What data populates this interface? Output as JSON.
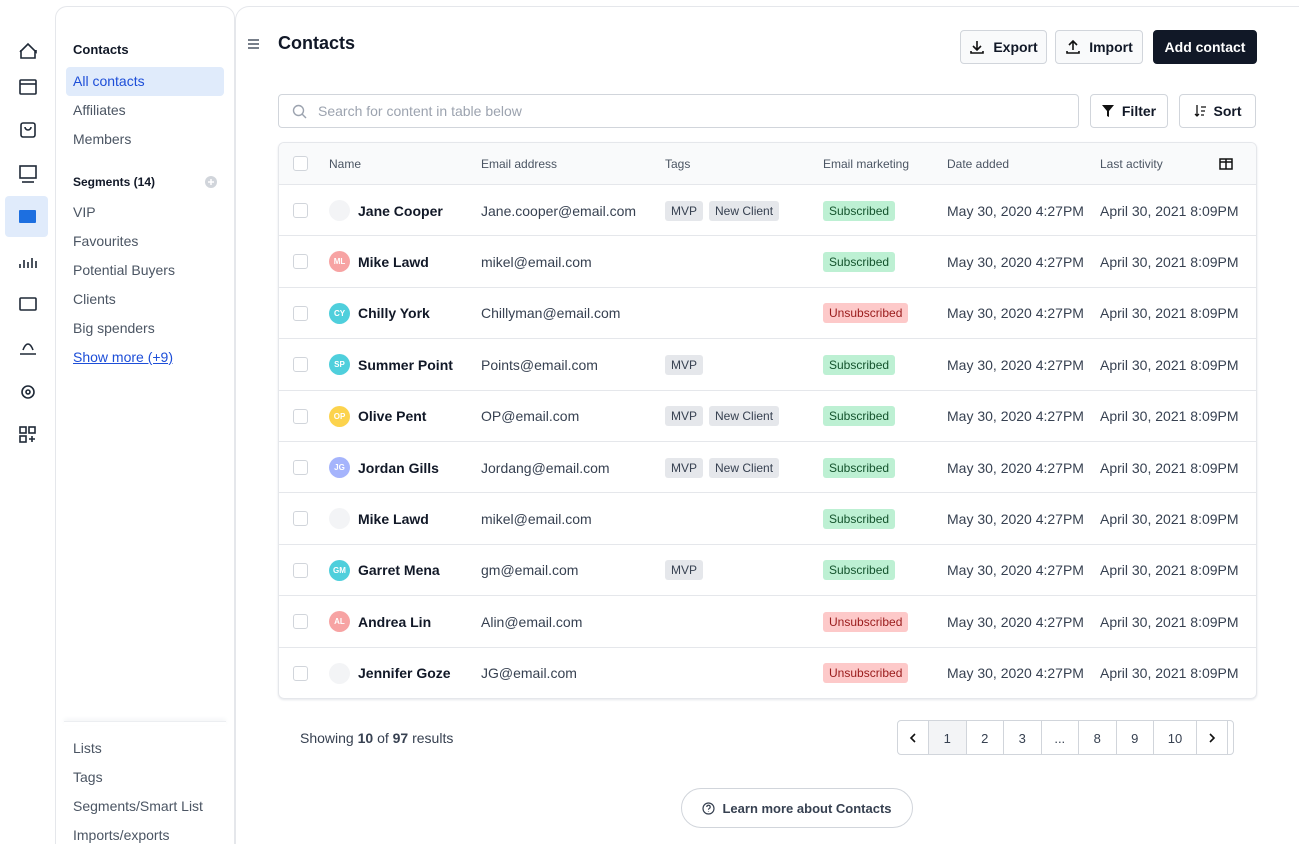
{
  "sidebar": {
    "title": "Contacts",
    "items": [
      "All contacts",
      "Affiliates",
      "Members"
    ],
    "active": "All contacts",
    "segments_title": "Segments (14)",
    "segments": [
      "VIP",
      "Favourites",
      "Potential Buyers",
      "Clients",
      "Big spenders"
    ],
    "show_more": "Show more (+9)",
    "footer_links": [
      "Lists",
      "Tags",
      "Segments/Smart List",
      "Imports/exports"
    ]
  },
  "header": {
    "title": "Contacts",
    "export": "Export",
    "import": "Import",
    "add": "Add contact"
  },
  "toolbar": {
    "search_placeholder": "Search for content in table below",
    "filter": "Filter",
    "sort": "Sort"
  },
  "table": {
    "columns": [
      "Name",
      "Email address",
      "Tags",
      "Email marketing",
      "Date added",
      "Last activity"
    ],
    "rows": [
      {
        "name": "Jane Cooper",
        "avatar_color": "#f3f4f6",
        "email": "Jane.cooper@email.com",
        "tags": [
          "MVP",
          "New Client"
        ],
        "status": "Subscribed",
        "date_added": "May 30, 2020 4:27PM",
        "last_activity": "April 30, 2021 8:09PM"
      },
      {
        "initials": "ML",
        "name": "Mike Lawd",
        "avatar_color": "#f7a3a3",
        "email": "mikel@email.com",
        "tags": [],
        "status": "Subscribed",
        "date_added": "May 30, 2020 4:27PM",
        "last_activity": "April 30, 2021 8:09PM"
      },
      {
        "initials": "CY",
        "name": "Chilly York",
        "avatar_color": "#4fcfdc",
        "email": "Chillyman@email.com",
        "tags": [],
        "status": "Unsubscribed",
        "date_added": "May 30, 2020 4:27PM",
        "last_activity": "April 30, 2021 8:09PM"
      },
      {
        "initials": "SP",
        "name": "Summer Point",
        "avatar_color": "#4fcfdc",
        "email": "Points@email.com",
        "tags": [
          "MVP"
        ],
        "status": "Subscribed",
        "date_added": "May 30, 2020 4:27PM",
        "last_activity": "April 30, 2021 8:09PM"
      },
      {
        "initials": "OP",
        "name": "Olive Pent",
        "avatar_color": "#fcd34d",
        "email": "OP@email.com",
        "tags": [
          "MVP",
          "New Client"
        ],
        "status": "Subscribed",
        "date_added": "May 30, 2020 4:27PM",
        "last_activity": "April 30, 2021 8:09PM"
      },
      {
        "initials": "JG",
        "name": "Jordan Gills",
        "avatar_color": "#a5b4fc",
        "email": "Jordang@email.com",
        "tags": [
          "MVP",
          "New Client"
        ],
        "status": "Subscribed",
        "date_added": "May 30, 2020 4:27PM",
        "last_activity": "April 30, 2021 8:09PM"
      },
      {
        "name": "Mike Lawd",
        "avatar_color": "#f3f4f6",
        "email": "mikel@email.com",
        "tags": [],
        "status": "Subscribed",
        "date_added": "May 30, 2020 4:27PM",
        "last_activity": "April 30, 2021 8:09PM"
      },
      {
        "initials": "GM",
        "name": "Garret Mena",
        "avatar_color": "#4fcfdc",
        "email": "gm@email.com",
        "tags": [
          "MVP"
        ],
        "status": "Subscribed",
        "date_added": "May 30, 2020 4:27PM",
        "last_activity": "April 30, 2021 8:09PM"
      },
      {
        "initials": "AL",
        "name": "Andrea Lin",
        "avatar_color": "#f7a3a3",
        "email": "Alin@email.com",
        "tags": [],
        "status": "Unsubscribed",
        "date_added": "May 30, 2020 4:27PM",
        "last_activity": "April 30, 2021 8:09PM"
      },
      {
        "name": "Jennifer Goze",
        "avatar_color": "#f3f4f6",
        "email": "JG@email.com",
        "tags": [],
        "status": "Unsubscribed",
        "date_added": "May 30, 2020 4:27PM",
        "last_activity": "April 30, 2021 8:09PM"
      }
    ]
  },
  "footer": {
    "showing": "Showing",
    "shown": 10,
    "of": "of",
    "total": 97,
    "results": "results",
    "pages": [
      1,
      2,
      3,
      "...",
      8,
      9,
      10
    ],
    "current": 1,
    "learn_more": "Learn more about Contacts"
  }
}
